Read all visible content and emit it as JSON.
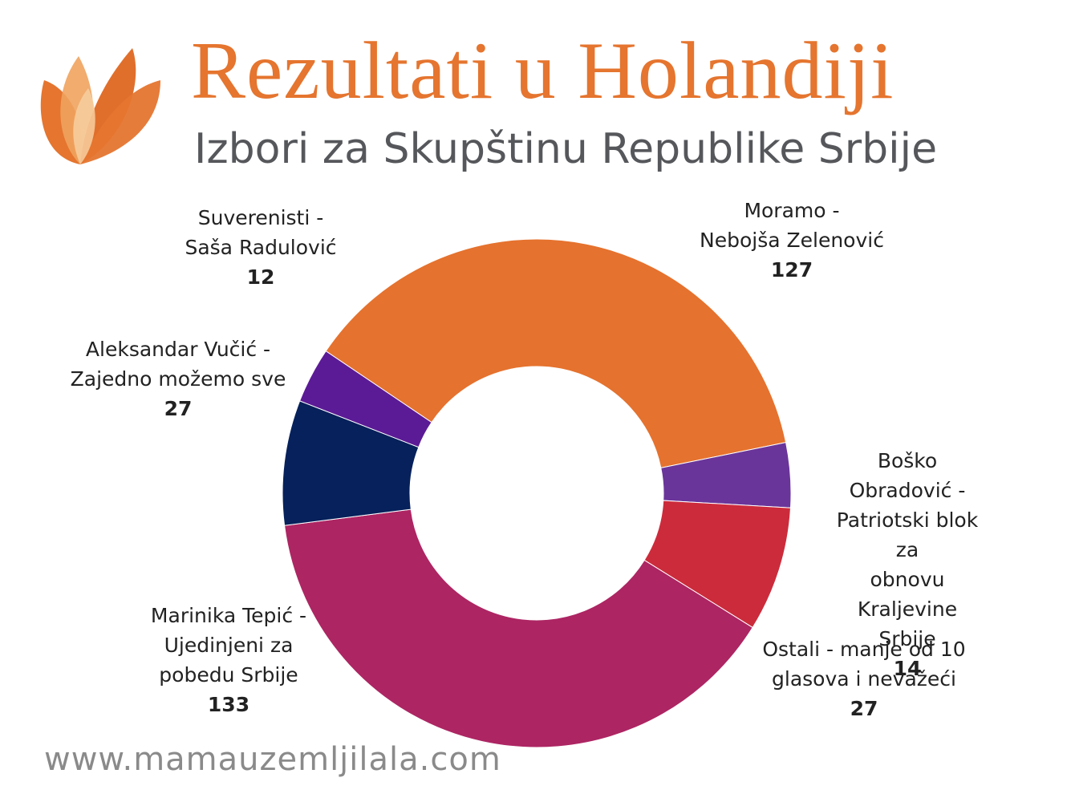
{
  "header": {
    "title": "Rezultati u Holandiji",
    "subtitle": "Izbori za Skupštinu Republike Srbije",
    "logo_colors": [
      "#e5752f",
      "#f0a35e",
      "#f7cfa0",
      "#d9692a"
    ]
  },
  "chart_data": {
    "type": "pie",
    "donut": true,
    "slices": [
      {
        "label": "Moramo -\nNebojša Zelenović",
        "value": 127,
        "color": "#e5722e"
      },
      {
        "label": "Boško Obradović -\nPatriotski blok za\nobnovu Kraljevine\nSrbije",
        "value": 14,
        "color": "#6a359a"
      },
      {
        "label": "Ostali - manje od 10\nglasova i nevažeći",
        "value": 27,
        "color": "#cc2b3b"
      },
      {
        "label": "Marinika Tepić -\nUjedinjeni za\npobedu Srbije",
        "value": 133,
        "color": "#ad2563"
      },
      {
        "label": "Aleksandar Vučić -\nZajedno možemo sve",
        "value": 27,
        "color": "#06215b"
      },
      {
        "label": "Suverenisti -\nSaša Radulović",
        "value": 12,
        "color": "#5b1b96"
      }
    ]
  },
  "footer": {
    "url": "www.mamauzemljilala.com"
  }
}
